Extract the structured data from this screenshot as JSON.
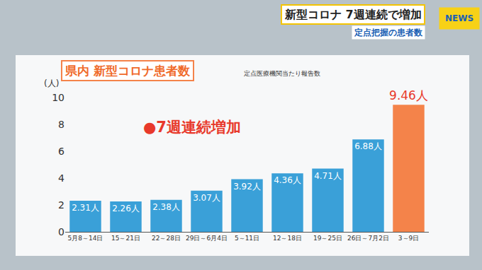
{
  "chart_data": {
    "type": "bar",
    "headline": "新型コロナ 7週連続で増加",
    "headline_sub": "定点把握の患者数",
    "logo_text": "NEWS",
    "title": "県内 新型コロナ患者数",
    "subtitle": "定点医療機関当たり報告数",
    "y_label": "(人)",
    "annotations": [
      "●7週連続増加"
    ],
    "categories": [
      "5月8～14日",
      "15～21日",
      "22～28日",
      "29日～6月4日",
      "5～11日",
      "12～18日",
      "19～25日",
      "26日～7月2日",
      "3～9日"
    ],
    "values": [
      2.31,
      2.26,
      2.38,
      3.07,
      3.92,
      4.36,
      4.71,
      6.88,
      9.46
    ],
    "value_labels": [
      "2.31人",
      "2.26人",
      "2.38人",
      "3.07人",
      "3.92人",
      "4.36人",
      "4.71人",
      "6.88人",
      "9.46人"
    ],
    "colors": [
      "#3aa0d8",
      "#3aa0d8",
      "#3aa0d8",
      "#3aa0d8",
      "#3aa0d8",
      "#3aa0d8",
      "#3aa0d8",
      "#3aa0d8",
      "#f4834a"
    ],
    "data_labels": true,
    "ylim": [
      0,
      10
    ],
    "yticks": [
      0,
      2,
      4,
      6,
      8,
      10
    ],
    "grid": false
  }
}
